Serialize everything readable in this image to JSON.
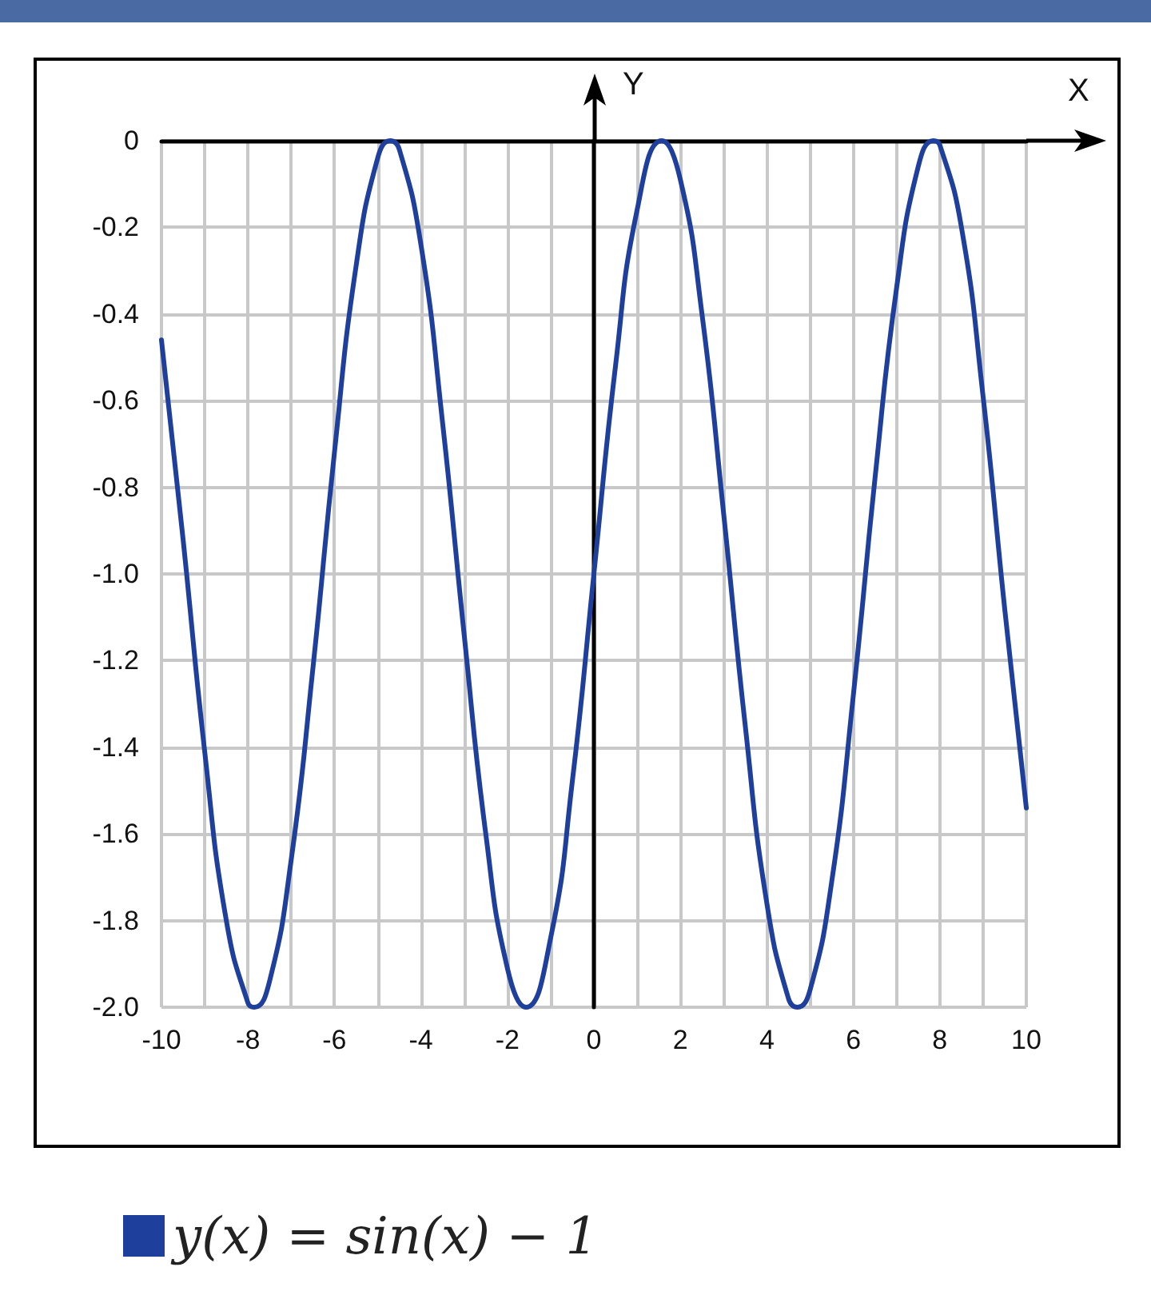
{
  "chart_data": {
    "type": "line",
    "xlabel": "X",
    "ylabel": "Y",
    "x": [
      -10,
      -9.5,
      -9,
      -8.5,
      -8,
      -7.85,
      -7.5,
      -7,
      -6.5,
      -6,
      -5.5,
      -5,
      -4.71,
      -4.5,
      -4,
      -3.5,
      -3,
      -2.5,
      -2,
      -1.57,
      -1,
      -0.5,
      0,
      0.5,
      1,
      1.57,
      2,
      2.5,
      3,
      3.5,
      4,
      4.5,
      4.71,
      5,
      5.5,
      6,
      6.5,
      7,
      7.5,
      7.85,
      8,
      8.5,
      9,
      9.5,
      10
    ],
    "series": [
      {
        "name": "y(x) = sin(x) − 1",
        "color": "#1f3f9c",
        "values": [
          -0.46,
          -0.92,
          -1.41,
          -1.8,
          -1.99,
          -2,
          -1.94,
          -1.66,
          -1.22,
          -0.72,
          -0.29,
          -0.04,
          0,
          -0.02,
          -0.24,
          -0.65,
          -1.14,
          -1.6,
          -1.91,
          -2,
          -1.84,
          -1.48,
          -1,
          -0.52,
          -0.16,
          0,
          -0.09,
          -0.4,
          -0.86,
          -1.35,
          -1.76,
          -1.98,
          -2,
          -1.96,
          -1.71,
          -1.28,
          -0.78,
          -0.34,
          -0.06,
          0,
          -0.01,
          -0.2,
          -0.59,
          -1.08,
          -1.54
        ]
      }
    ],
    "xlim": [
      -10,
      10
    ],
    "xticks": [
      -10,
      {
        "value": -9,
        "label": null
      },
      -8,
      {
        "value": -7,
        "label": null
      },
      -6,
      {
        "value": -5,
        "label": null
      },
      -4,
      {
        "value": -3,
        "label": null
      },
      -2,
      {
        "value": -1,
        "label": null
      },
      0,
      {
        "value": 1,
        "label": null
      },
      2,
      {
        "value": 3,
        "label": null
      },
      4,
      {
        "value": 5,
        "label": null
      },
      6,
      {
        "value": 7,
        "label": null
      },
      8,
      {
        "value": 9,
        "label": null
      },
      10
    ],
    "ylim": [
      -2,
      0
    ],
    "yticks": [
      {
        "value": -2,
        "label": "-2.0"
      },
      -1.8,
      -1.6,
      -1.4,
      -1.2,
      {
        "value": -1,
        "label": "-1.0"
      },
      -0.8,
      -0.6,
      -0.4,
      -0.2,
      0
    ],
    "grid": true,
    "legend": "bottom left"
  }
}
